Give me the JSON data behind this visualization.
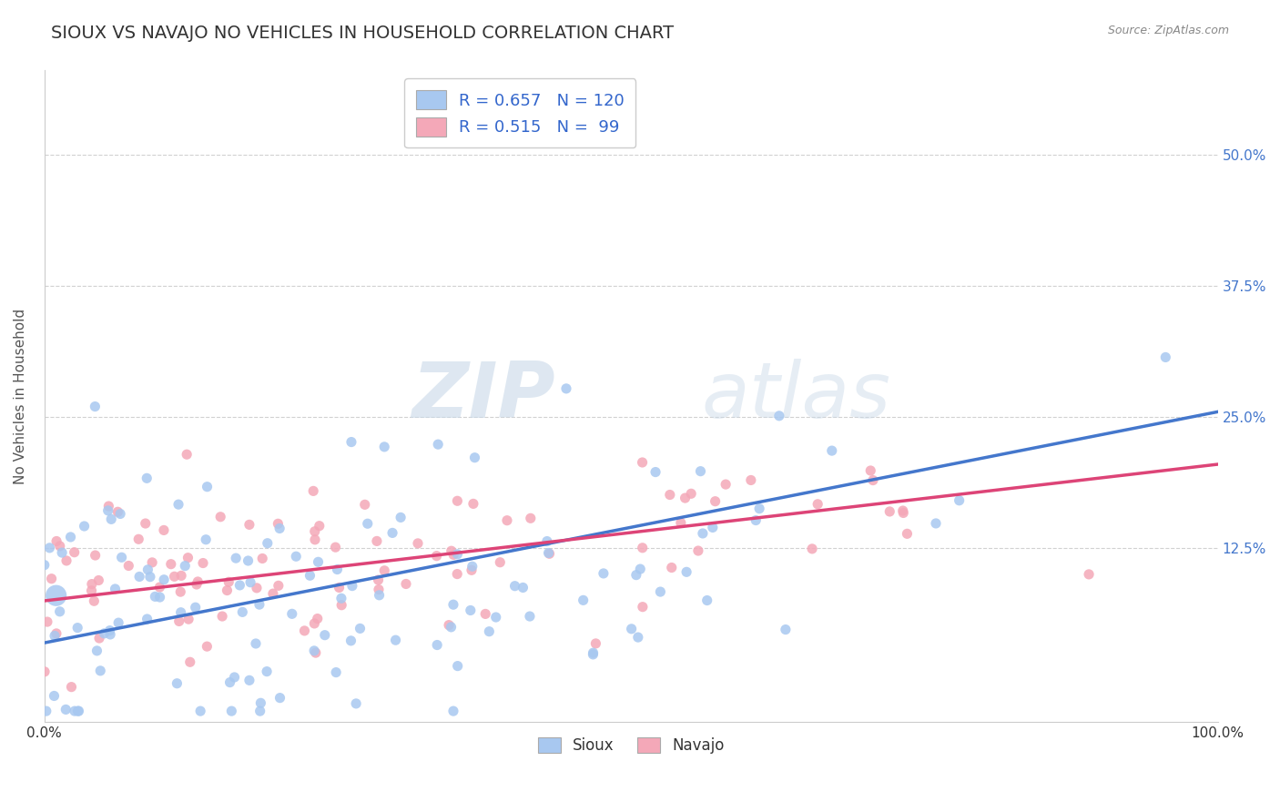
{
  "title": "SIOUX VS NAVAJO NO VEHICLES IN HOUSEHOLD CORRELATION CHART",
  "source": "Source: ZipAtlas.com",
  "ylabel": "No Vehicles in Household",
  "watermark_zip": "ZIP",
  "watermark_atlas": "atlas",
  "sioux_R": 0.657,
  "sioux_N": 120,
  "navajo_R": 0.515,
  "navajo_N": 99,
  "sioux_color": "#a8c8f0",
  "navajo_color": "#f4a8b8",
  "sioux_line_color": "#4477cc",
  "navajo_line_color": "#dd4477",
  "background_color": "#ffffff",
  "grid_color": "#cccccc",
  "xlim": [
    0.0,
    1.0
  ],
  "ylim": [
    -0.04,
    0.58
  ],
  "ytick_labels": [
    "12.5%",
    "25.0%",
    "37.5%",
    "50.0%"
  ],
  "ytick_values": [
    0.125,
    0.25,
    0.375,
    0.5
  ],
  "title_fontsize": 14,
  "axis_label_fontsize": 11,
  "tick_fontsize": 11,
  "legend_fontsize": 13,
  "sioux_slope": 0.22,
  "sioux_intercept": 0.035,
  "navajo_slope": 0.13,
  "navajo_intercept": 0.075
}
